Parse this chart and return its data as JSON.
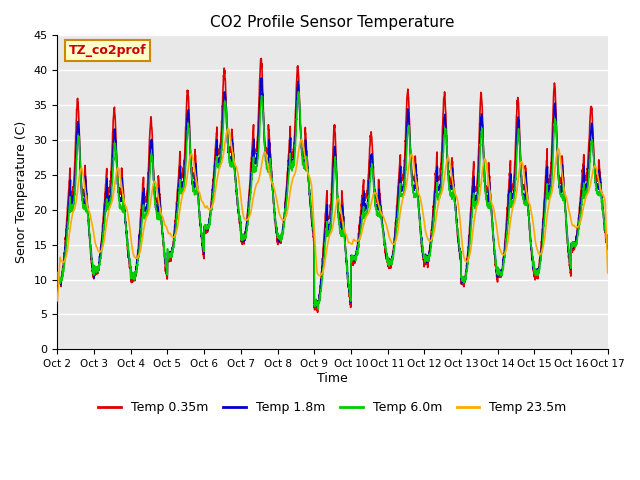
{
  "title": "CO2 Profile Sensor Temperature",
  "ylabel": "Senor Temperature (C)",
  "xlabel": "Time",
  "annotation_text": "TZ_co2prof",
  "annotation_color": "#cc0000",
  "annotation_bg": "#ffffcc",
  "annotation_border": "#cc8800",
  "ylim": [
    0,
    45
  ],
  "xlim": [
    0,
    15
  ],
  "x_tick_labels": [
    "Oct 2",
    "Oct 3",
    "Oct 4",
    "Oct 5",
    "Oct 6",
    "Oct 7",
    "Oct 8",
    "Oct 9",
    "Oct 10",
    "Oct 11",
    "Oct 12",
    "Oct 13",
    "Oct 14",
    "Oct 15",
    "Oct 16",
    "Oct 17"
  ],
  "plot_bg": "#e8e8e8",
  "fig_bg": "#ffffff",
  "grid_color": "#ffffff",
  "series": [
    {
      "label": "Temp 0.35m",
      "color": "#dd0000",
      "lw": 1.2
    },
    {
      "label": "Temp 1.8m",
      "color": "#0000cc",
      "lw": 1.2
    },
    {
      "label": "Temp 6.0m",
      "color": "#00cc00",
      "lw": 1.2
    },
    {
      "label": "Temp 23.5m",
      "color": "#ffaa00",
      "lw": 1.2
    }
  ],
  "y_ticks": [
    0,
    5,
    10,
    15,
    20,
    25,
    30,
    35,
    40,
    45
  ],
  "legend_ncol": 4
}
